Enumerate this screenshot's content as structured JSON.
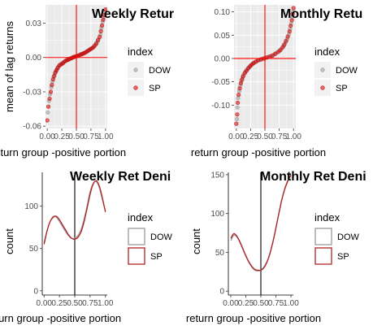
{
  "colors": {
    "dow": "#999999",
    "sp": "#cc0000",
    "reference_line_scatter": "#ff0000",
    "reference_line_density": "#000000",
    "panel_background": "#ebebeb",
    "grid": "#ffffff"
  },
  "chart_data": [
    {
      "id": "weekly-scatter",
      "type": "scatter",
      "title": "Weekly Retur",
      "xlabel": "return group -positive portion",
      "ylabel": "mean of lag returns",
      "xlim": [
        -0.03,
        1.03
      ],
      "ylim": [
        -0.062,
        0.046
      ],
      "x_ticks": [
        0,
        0.25,
        0.5,
        0.75,
        1
      ],
      "x_tick_labels": [
        "0.00",
        "0.25",
        "0.50",
        "0.75",
        "1.00"
      ],
      "y_ticks": [
        -0.06,
        -0.03,
        0,
        0.03
      ],
      "y_tick_labels": [
        "-0.06",
        "-0.03",
        "0.00",
        "0.03"
      ],
      "vline": 0.5,
      "hline": 0,
      "grid": true,
      "legend": {
        "title": "index",
        "position": "right",
        "entries": [
          "DOW",
          "SP"
        ]
      },
      "series": [
        {
          "name": "DOW",
          "color": "#999999",
          "x": [
            0.01,
            0.03,
            0.05,
            0.07,
            0.09,
            0.11,
            0.13,
            0.15,
            0.17,
            0.19,
            0.22,
            0.25,
            0.28,
            0.31,
            0.34,
            0.37,
            0.4,
            0.43,
            0.46,
            0.49,
            0.52,
            0.55,
            0.58,
            0.61,
            0.64,
            0.67,
            0.7,
            0.73,
            0.76,
            0.79,
            0.82,
            0.85,
            0.88,
            0.91,
            0.93,
            0.95,
            0.97,
            0.99
          ],
          "y": [
            -0.048,
            -0.038,
            -0.032,
            -0.026,
            -0.021,
            -0.017,
            -0.014,
            -0.012,
            -0.01,
            -0.008,
            -0.006,
            -0.005,
            -0.004,
            -0.003,
            -0.002,
            -0.0015,
            -0.001,
            0,
            0.0005,
            0.001,
            0.0015,
            0.002,
            0.003,
            0.0035,
            0.004,
            0.005,
            0.006,
            0.007,
            0.008,
            0.009,
            0.011,
            0.013,
            0.016,
            0.02,
            0.026,
            0.031,
            0.035,
            0.04
          ]
        },
        {
          "name": "SP",
          "color": "#cc0000",
          "x": [
            0.0,
            0.02,
            0.04,
            0.06,
            0.08,
            0.1,
            0.12,
            0.14,
            0.16,
            0.18,
            0.21,
            0.24,
            0.27,
            0.3,
            0.33,
            0.36,
            0.39,
            0.42,
            0.45,
            0.48,
            0.51,
            0.54,
            0.57,
            0.6,
            0.63,
            0.66,
            0.69,
            0.72,
            0.75,
            0.78,
            0.81,
            0.84,
            0.87,
            0.9,
            0.92,
            0.94,
            0.96,
            0.98,
            1.0
          ],
          "y": [
            -0.055,
            -0.043,
            -0.036,
            -0.03,
            -0.024,
            -0.019,
            -0.016,
            -0.013,
            -0.011,
            -0.009,
            -0.007,
            -0.006,
            -0.005,
            -0.0035,
            -0.0025,
            -0.002,
            -0.001,
            -0.0005,
            0.0003,
            0.0008,
            0.0012,
            0.0018,
            0.0025,
            0.003,
            0.0038,
            0.0045,
            0.0055,
            0.0065,
            0.0075,
            0.0085,
            0.01,
            0.012,
            0.015,
            0.018,
            0.023,
            0.028,
            0.033,
            0.037,
            0.042
          ]
        }
      ]
    },
    {
      "id": "monthly-scatter",
      "type": "scatter",
      "title": "Monthly Retu",
      "xlabel": "return group -positive portion",
      "ylabel": "",
      "xlim": [
        -0.04,
        1.04
      ],
      "ylim": [
        -0.15,
        0.115
      ],
      "x_ticks": [
        0,
        0.25,
        0.5,
        0.75,
        1
      ],
      "x_tick_labels": [
        "0.00",
        "0.25",
        "0.50",
        "0.75",
        "1.00"
      ],
      "y_ticks": [
        -0.1,
        -0.05,
        0,
        0.05,
        0.1
      ],
      "y_tick_labels": [
        "-0.10",
        "-0.05",
        "0.00",
        "0.05",
        "0.10"
      ],
      "vline": 0.5,
      "hline": 0,
      "grid": true,
      "legend": {
        "title": "index",
        "position": "right",
        "entries": [
          "DOW",
          "SP"
        ]
      },
      "series": [
        {
          "name": "DOW",
          "color": "#999999",
          "x": [
            0.01,
            0.02,
            0.03,
            0.05,
            0.07,
            0.09,
            0.11,
            0.13,
            0.16,
            0.19,
            0.22,
            0.25,
            0.28,
            0.31,
            0.35,
            0.4,
            0.45,
            0.5,
            0.55,
            0.6,
            0.65,
            0.7,
            0.75,
            0.79,
            0.83,
            0.86,
            0.89,
            0.92,
            0.94,
            0.96,
            0.98,
            0.99
          ],
          "y": [
            -0.13,
            -0.105,
            -0.085,
            -0.07,
            -0.058,
            -0.048,
            -0.04,
            -0.034,
            -0.028,
            -0.023,
            -0.019,
            -0.015,
            -0.012,
            -0.009,
            -0.006,
            -0.003,
            -0.001,
            0.001,
            0.003,
            0.005,
            0.008,
            0.012,
            0.016,
            0.021,
            0.027,
            0.034,
            0.042,
            0.052,
            0.063,
            0.075,
            0.088,
            0.1
          ]
        },
        {
          "name": "SP",
          "color": "#cc0000",
          "x": [
            0.0,
            0.015,
            0.025,
            0.04,
            0.06,
            0.08,
            0.1,
            0.12,
            0.15,
            0.18,
            0.21,
            0.24,
            0.27,
            0.3,
            0.34,
            0.38,
            0.43,
            0.48,
            0.53,
            0.58,
            0.63,
            0.68,
            0.73,
            0.77,
            0.81,
            0.84,
            0.87,
            0.9,
            0.93,
            0.95,
            0.97,
            0.985,
            1.0
          ],
          "y": [
            -0.14,
            -0.12,
            -0.095,
            -0.078,
            -0.064,
            -0.053,
            -0.045,
            -0.038,
            -0.031,
            -0.026,
            -0.021,
            -0.017,
            -0.013,
            -0.01,
            -0.007,
            -0.004,
            -0.002,
            0,
            0.002,
            0.004,
            0.006,
            0.01,
            0.014,
            0.018,
            0.024,
            0.03,
            0.038,
            0.047,
            0.058,
            0.07,
            0.082,
            0.095,
            0.108
          ]
        }
      ]
    },
    {
      "id": "weekly-density",
      "type": "line",
      "title": "Weekly Ret Deni",
      "xlabel": "return group -positive portion",
      "ylabel": "count",
      "xlim": [
        -0.03,
        1.03
      ],
      "ylim": [
        -5,
        140
      ],
      "x_ticks": [
        0,
        0.25,
        0.5,
        0.75,
        1
      ],
      "x_tick_labels": [
        "0.00",
        "0.25",
        "0.50",
        "0.75",
        "1.00"
      ],
      "y_ticks": [
        0,
        50,
        100
      ],
      "y_tick_labels": [
        "0",
        "50",
        "100"
      ],
      "vline": 0.5,
      "grid": false,
      "legend": {
        "title": "index",
        "position": "right",
        "entries": [
          "DOW",
          "SP"
        ]
      },
      "series": [
        {
          "name": "DOW",
          "color": "#999999",
          "x": [
            0,
            0.05,
            0.1,
            0.15,
            0.2,
            0.25,
            0.3,
            0.35,
            0.4,
            0.45,
            0.5,
            0.55,
            0.6,
            0.65,
            0.7,
            0.75,
            0.8,
            0.85,
            0.9,
            0.95,
            1.0
          ],
          "y": [
            57,
            72,
            82,
            88,
            87,
            82,
            76,
            70,
            65,
            62,
            62,
            65,
            72,
            84,
            100,
            117,
            127,
            129,
            122,
            108,
            94
          ]
        },
        {
          "name": "SP",
          "color": "#b22222",
          "x": [
            0,
            0.05,
            0.1,
            0.15,
            0.2,
            0.25,
            0.3,
            0.35,
            0.4,
            0.45,
            0.5,
            0.55,
            0.6,
            0.65,
            0.7,
            0.75,
            0.8,
            0.85,
            0.9,
            0.95,
            1.0
          ],
          "y": [
            55,
            71,
            82,
            87,
            88,
            84,
            78,
            72,
            66,
            62,
            61,
            63,
            69,
            81,
            97,
            114,
            126,
            130,
            124,
            110,
            93
          ]
        }
      ]
    },
    {
      "id": "monthly-density",
      "type": "line",
      "title": "Monthly Ret Deni",
      "xlabel": "return group -positive portion",
      "ylabel": "count",
      "xlim": [
        -0.04,
        1.04
      ],
      "ylim": [
        -5,
        153
      ],
      "x_ticks": [
        0,
        0.25,
        0.5,
        0.75,
        1
      ],
      "x_tick_labels": [
        "0.00",
        "0.25",
        "0.50",
        "0.75",
        "1.00"
      ],
      "y_ticks": [
        0,
        50,
        100,
        150
      ],
      "y_tick_labels": [
        "0",
        "50",
        "100",
        "150"
      ],
      "vline": 0.5,
      "grid": false,
      "legend": {
        "title": "index",
        "position": "right",
        "entries": [
          "DOW",
          "SP"
        ]
      },
      "series": [
        {
          "name": "DOW",
          "color": "#999999",
          "x": [
            0,
            0.05,
            0.1,
            0.15,
            0.2,
            0.25,
            0.3,
            0.35,
            0.4,
            0.45,
            0.5,
            0.55,
            0.6,
            0.65,
            0.7,
            0.75,
            0.8,
            0.85,
            0.9,
            0.95,
            1.0
          ],
          "y": [
            65,
            72,
            70,
            63,
            54,
            45,
            37,
            31,
            27,
            26,
            27,
            31,
            38,
            49,
            64,
            82,
            101,
            119,
            133,
            143,
            148
          ]
        },
        {
          "name": "SP",
          "color": "#b22222",
          "x": [
            0,
            0.05,
            0.1,
            0.15,
            0.2,
            0.25,
            0.3,
            0.35,
            0.4,
            0.45,
            0.5,
            0.55,
            0.6,
            0.65,
            0.7,
            0.75,
            0.8,
            0.85,
            0.9,
            0.95,
            1.0
          ],
          "y": [
            68,
            74,
            71,
            64,
            55,
            46,
            38,
            32,
            28,
            27,
            27,
            30,
            37,
            48,
            63,
            81,
            100,
            118,
            132,
            142,
            150
          ]
        }
      ]
    }
  ]
}
